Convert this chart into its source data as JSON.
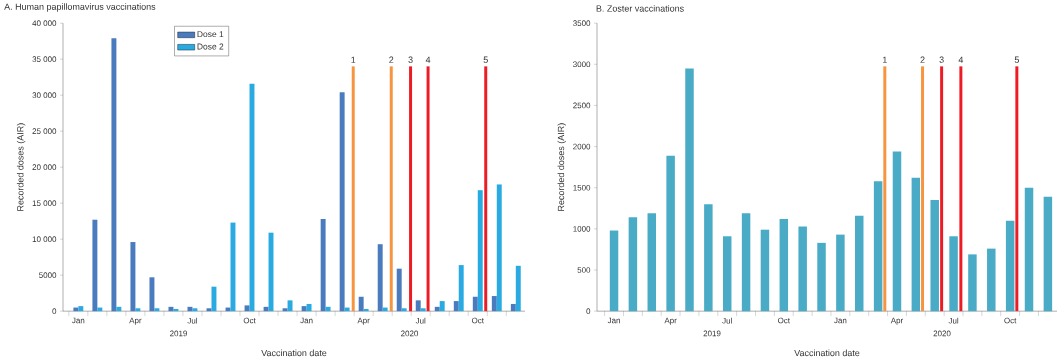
{
  "chart_data": [
    {
      "type": "bar",
      "title": "A. Human papillomavirus vaccinations",
      "xlabel": "Vaccination date",
      "ylabel": "Recorded doses (AIR)",
      "x": [
        "2019-01",
        "2019-02",
        "2019-03",
        "2019-04",
        "2019-05",
        "2019-06",
        "2019-07",
        "2019-08",
        "2019-09",
        "2019-10",
        "2019-11",
        "2019-12",
        "2020-01",
        "2020-02",
        "2020-03",
        "2020-04",
        "2020-05",
        "2020-06",
        "2020-07",
        "2020-08",
        "2020-09",
        "2020-10",
        "2020-11",
        "2020-12"
      ],
      "series": [
        {
          "name": "Dose 1",
          "color": "#4a7bbf",
          "values": [
            500,
            12700,
            37900,
            9600,
            4700,
            600,
            600,
            400,
            500,
            800,
            600,
            400,
            700,
            12800,
            30400,
            2000,
            9300,
            5900,
            1500,
            600,
            1400,
            2000,
            2100,
            1000
          ]
        },
        {
          "name": "Dose 2",
          "color": "#29abe2",
          "values": [
            700,
            500,
            600,
            400,
            400,
            300,
            400,
            3400,
            12300,
            31600,
            10900,
            1500,
            1000,
            600,
            500,
            300,
            500,
            400,
            400,
            1400,
            6400,
            16800,
            17600,
            6300
          ]
        }
      ],
      "xlim": [
        "2018-12-07",
        "2020-12-16"
      ],
      "ylim": [
        0,
        40000
      ],
      "xticks": [
        {
          "value": "2019-01",
          "label": "Jan"
        },
        {
          "value": "2019-04",
          "label": "Apr"
        },
        {
          "value": "2019-07",
          "label": "Jul"
        },
        {
          "value": "2019-10",
          "label": "Oct"
        },
        {
          "value": "2020-01",
          "label": "Jan"
        },
        {
          "value": "2020-04",
          "label": "Apr"
        },
        {
          "value": "2020-07",
          "label": "Jul"
        },
        {
          "value": "2020-10",
          "label": "Oct"
        }
      ],
      "yticks": [
        0,
        5000,
        {
          "value": 10000,
          "label": "10 000"
        },
        {
          "value": 15000,
          "label": "15 000"
        },
        {
          "value": 20000,
          "label": "20 000"
        },
        {
          "value": 25000,
          "label": "25 000"
        },
        {
          "value": 30000,
          "label": "30 000"
        },
        {
          "value": 35000,
          "label": "35 000"
        },
        {
          "value": 40000,
          "label": "40 000"
        }
      ],
      "legend": "top",
      "ref_lines": [
        {
          "axis": "x",
          "value": "2020-03-15",
          "label": "1",
          "color": "#f7943f"
        },
        {
          "axis": "x",
          "value": "2020-05-15",
          "label": "2",
          "color": "#f7943f"
        },
        {
          "axis": "x",
          "value": "2020-06-15",
          "label": "3",
          "color": "#ed1c24"
        },
        {
          "axis": "x",
          "value": "2020-07-13",
          "label": "4",
          "color": "#ed1c24"
        },
        {
          "axis": "x",
          "value": "2020-10-14",
          "label": "5",
          "color": "#ed1c24"
        }
      ],
      "annotations": [
        "2019",
        "2020"
      ]
    },
    {
      "type": "bar",
      "title": "B. Zoster vaccinations",
      "xlabel": "Vaccination date",
      "ylabel": "Recorded doses (AIR)",
      "x": [
        "2019-01",
        "2019-02",
        "2019-03",
        "2019-04",
        "2019-05",
        "2019-06",
        "2019-07",
        "2019-08",
        "2019-09",
        "2019-10",
        "2019-11",
        "2019-12",
        "2020-01",
        "2020-02",
        "2020-03",
        "2020-04",
        "2020-05",
        "2020-06",
        "2020-07",
        "2020-08",
        "2020-09",
        "2020-10",
        "2020-11",
        "2020-12"
      ],
      "series": [
        {
          "color": "#4aabc7",
          "values": [
            980,
            1140,
            1190,
            1890,
            2950,
            1300,
            910,
            1190,
            990,
            1120,
            1030,
            830,
            930,
            1160,
            1580,
            1940,
            1620,
            1350,
            910,
            690,
            760,
            1100,
            1500,
            1390
          ]
        }
      ],
      "xlim": [
        "2018-12-04",
        "2020-12-16"
      ],
      "ylim": [
        0,
        3500
      ],
      "xticks": [
        {
          "value": "2019-01",
          "label": "Jan"
        },
        {
          "value": "2019-04",
          "label": "Apr"
        },
        {
          "value": "2019-07",
          "label": "Jul"
        },
        {
          "value": "2019-10",
          "label": "Oct"
        },
        {
          "value": "2020-01",
          "label": "Jan"
        },
        {
          "value": "2020-04",
          "label": "Apr"
        },
        {
          "value": "2020-07",
          "label": "Jul"
        },
        {
          "value": "2020-10",
          "label": "Oct"
        }
      ],
      "yticks": [
        0,
        500,
        1000,
        1500,
        2000,
        2500,
        3000,
        3500
      ],
      "ref_lines": [
        {
          "axis": "x",
          "value": "2020-03-12",
          "label": "1",
          "color": "#f7943f"
        },
        {
          "axis": "x",
          "value": "2020-05-12",
          "label": "2",
          "color": "#f7943f"
        },
        {
          "axis": "x",
          "value": "2020-06-12",
          "label": "3",
          "color": "#ed1c24"
        },
        {
          "axis": "x",
          "value": "2020-07-13",
          "label": "4",
          "color": "#ed1c24"
        },
        {
          "axis": "x",
          "value": "2020-10-12",
          "label": "5",
          "color": "#ed1c24"
        }
      ],
      "annotations": [
        "2019",
        "2020"
      ]
    }
  ]
}
